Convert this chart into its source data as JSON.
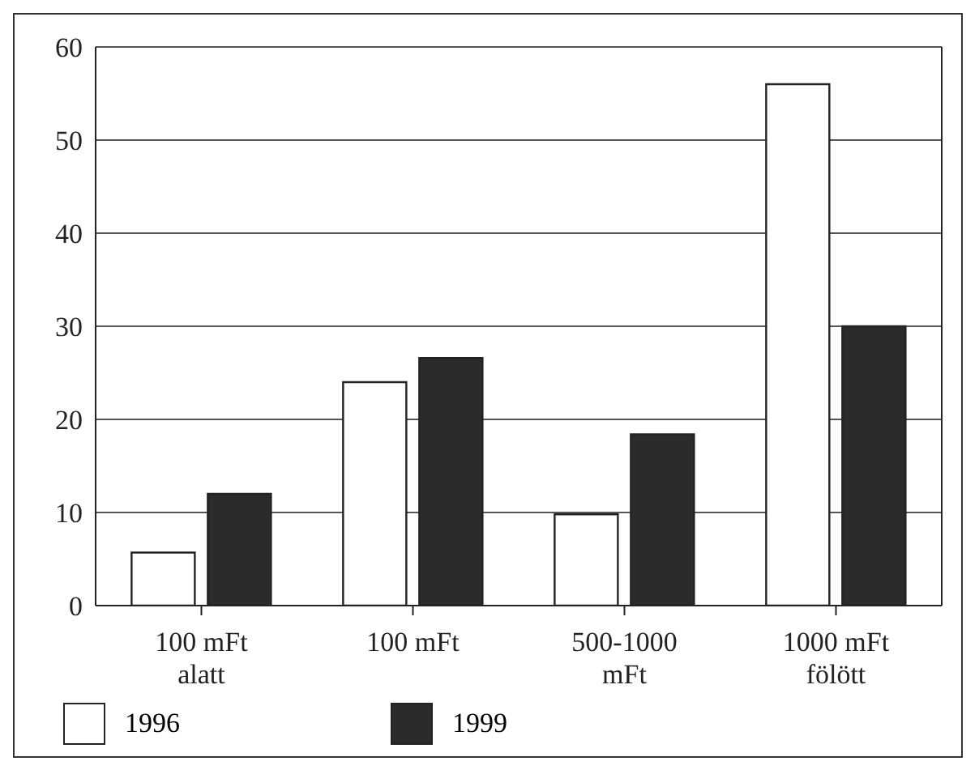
{
  "chart_data": {
    "type": "bar",
    "categories": [
      "100 mFt\nalatt",
      "100 mFt",
      "500-1000\nmFt",
      "1000 mFt\nfölött"
    ],
    "series": [
      {
        "name": "1996",
        "color": "#ffffff",
        "values": [
          5.7,
          24,
          9.8,
          56
        ]
      },
      {
        "name": "1999",
        "color": "#2b2b2b",
        "values": [
          12,
          26.6,
          18.4,
          30
        ]
      }
    ],
    "ylim": [
      0,
      60
    ],
    "yticks": [
      0,
      10,
      20,
      30,
      40,
      50,
      60
    ],
    "grid": "y",
    "legend": "bottom left"
  }
}
